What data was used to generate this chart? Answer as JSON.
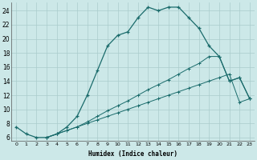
{
  "xlabel": "Humidex (Indice chaleur)",
  "background_color": "#cce8e8",
  "grid_color": "#aacccc",
  "line_color": "#1a6b6b",
  "xlim": [
    -0.5,
    23.5
  ],
  "ylim": [
    5.5,
    25.2
  ],
  "xticks": [
    0,
    1,
    2,
    3,
    4,
    5,
    6,
    7,
    8,
    9,
    10,
    11,
    12,
    13,
    14,
    15,
    16,
    17,
    18,
    19,
    20,
    21,
    22,
    23
  ],
  "yticks": [
    6,
    8,
    10,
    12,
    14,
    16,
    18,
    20,
    22,
    24
  ],
  "series1_x": [
    0,
    1,
    2,
    3,
    4,
    5,
    6,
    7,
    8,
    9,
    10,
    11,
    12,
    13,
    14,
    15,
    16,
    17,
    18,
    19,
    20,
    21,
    22,
    23
  ],
  "series1_y": [
    7.5,
    6.5,
    6.0,
    6.0,
    6.5,
    7.5,
    9.0,
    12.0,
    15.5,
    19.0,
    20.5,
    21.0,
    23.0,
    24.5,
    24.0,
    24.5,
    24.5,
    23.0,
    21.5,
    19.0,
    17.5,
    14.0,
    14.5,
    11.5
  ],
  "series2_x": [
    3,
    4,
    5,
    6,
    7,
    8,
    9,
    10,
    11,
    12,
    13,
    14,
    15,
    16,
    17,
    18,
    19,
    20,
    21,
    22,
    23
  ],
  "series2_y": [
    6.0,
    6.5,
    7.0,
    7.5,
    8.2,
    9.0,
    9.8,
    10.5,
    11.2,
    12.0,
    12.8,
    13.5,
    14.2,
    15.0,
    15.8,
    16.5,
    17.5,
    17.5,
    14.0,
    14.5,
    11.5
  ],
  "series3_x": [
    3,
    4,
    5,
    6,
    7,
    8,
    9,
    10,
    11,
    12,
    13,
    14,
    15,
    16,
    17,
    18,
    19,
    20,
    21,
    22,
    23
  ],
  "series3_y": [
    6.0,
    6.5,
    7.0,
    7.5,
    8.0,
    8.5,
    9.0,
    9.5,
    10.0,
    10.5,
    11.0,
    11.5,
    12.0,
    12.5,
    13.0,
    13.5,
    14.0,
    14.5,
    15.0,
    11.0,
    11.5
  ]
}
